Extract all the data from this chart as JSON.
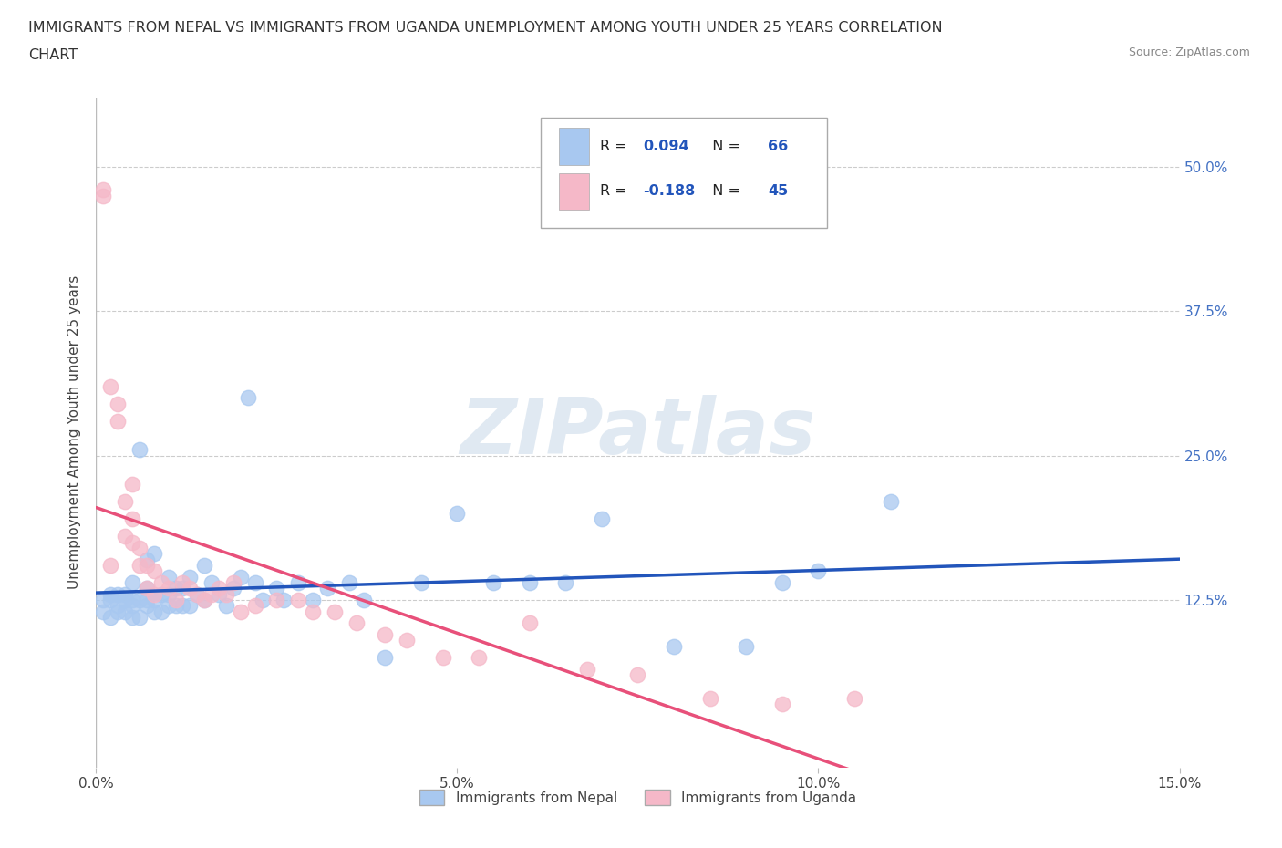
{
  "title_line1": "IMMIGRANTS FROM NEPAL VS IMMIGRANTS FROM UGANDA UNEMPLOYMENT AMONG YOUTH UNDER 25 YEARS CORRELATION",
  "title_line2": "CHART",
  "source": "Source: ZipAtlas.com",
  "ylabel": "Unemployment Among Youth under 25 years",
  "xlim": [
    0.0,
    0.15
  ],
  "ylim": [
    -0.02,
    0.56
  ],
  "xticks": [
    0.0,
    0.05,
    0.1,
    0.15
  ],
  "xtick_labels": [
    "0.0%",
    "5.0%",
    "10.0%",
    "15.0%"
  ],
  "ytick_positions": [
    0.125,
    0.25,
    0.375,
    0.5
  ],
  "ytick_labels": [
    "12.5%",
    "25.0%",
    "37.5%",
    "50.0%"
  ],
  "nepal_color": "#a8c8f0",
  "uganda_color": "#f5b8c8",
  "nepal_line_color": "#2255bb",
  "uganda_line_color": "#e8507a",
  "nepal_R": 0.094,
  "nepal_N": 66,
  "uganda_R": -0.188,
  "uganda_N": 45,
  "grid_color": "#cccccc",
  "background_color": "#ffffff",
  "watermark_text": "ZIPatlas",
  "nepal_scatter_x": [
    0.001,
    0.001,
    0.002,
    0.002,
    0.002,
    0.003,
    0.003,
    0.003,
    0.004,
    0.004,
    0.004,
    0.005,
    0.005,
    0.005,
    0.005,
    0.006,
    0.006,
    0.006,
    0.007,
    0.007,
    0.007,
    0.007,
    0.008,
    0.008,
    0.008,
    0.009,
    0.009,
    0.01,
    0.01,
    0.01,
    0.011,
    0.011,
    0.012,
    0.012,
    0.013,
    0.013,
    0.014,
    0.015,
    0.015,
    0.016,
    0.017,
    0.018,
    0.019,
    0.02,
    0.021,
    0.022,
    0.023,
    0.025,
    0.026,
    0.028,
    0.03,
    0.032,
    0.035,
    0.037,
    0.04,
    0.045,
    0.05,
    0.055,
    0.06,
    0.065,
    0.07,
    0.08,
    0.09,
    0.095,
    0.1,
    0.11
  ],
  "nepal_scatter_y": [
    0.115,
    0.125,
    0.11,
    0.125,
    0.13,
    0.12,
    0.115,
    0.13,
    0.115,
    0.125,
    0.13,
    0.11,
    0.12,
    0.125,
    0.14,
    0.11,
    0.125,
    0.255,
    0.12,
    0.125,
    0.135,
    0.16,
    0.115,
    0.125,
    0.165,
    0.115,
    0.13,
    0.12,
    0.13,
    0.145,
    0.12,
    0.135,
    0.12,
    0.135,
    0.12,
    0.145,
    0.13,
    0.125,
    0.155,
    0.14,
    0.13,
    0.12,
    0.135,
    0.145,
    0.3,
    0.14,
    0.125,
    0.135,
    0.125,
    0.14,
    0.125,
    0.135,
    0.14,
    0.125,
    0.075,
    0.14,
    0.2,
    0.14,
    0.14,
    0.14,
    0.195,
    0.085,
    0.085,
    0.14,
    0.15,
    0.21
  ],
  "uganda_scatter_x": [
    0.001,
    0.001,
    0.002,
    0.002,
    0.003,
    0.003,
    0.004,
    0.004,
    0.005,
    0.005,
    0.005,
    0.006,
    0.006,
    0.007,
    0.007,
    0.008,
    0.008,
    0.009,
    0.01,
    0.011,
    0.012,
    0.013,
    0.014,
    0.015,
    0.016,
    0.017,
    0.018,
    0.019,
    0.02,
    0.022,
    0.025,
    0.028,
    0.03,
    0.033,
    0.036,
    0.04,
    0.043,
    0.048,
    0.053,
    0.06,
    0.068,
    0.075,
    0.085,
    0.095,
    0.105
  ],
  "uganda_scatter_y": [
    0.475,
    0.48,
    0.155,
    0.31,
    0.295,
    0.28,
    0.21,
    0.18,
    0.195,
    0.175,
    0.225,
    0.155,
    0.17,
    0.155,
    0.135,
    0.15,
    0.13,
    0.14,
    0.135,
    0.125,
    0.14,
    0.135,
    0.13,
    0.125,
    0.13,
    0.135,
    0.13,
    0.14,
    0.115,
    0.12,
    0.125,
    0.125,
    0.115,
    0.115,
    0.105,
    0.095,
    0.09,
    0.075,
    0.075,
    0.105,
    0.065,
    0.06,
    0.04,
    0.035,
    0.04
  ]
}
